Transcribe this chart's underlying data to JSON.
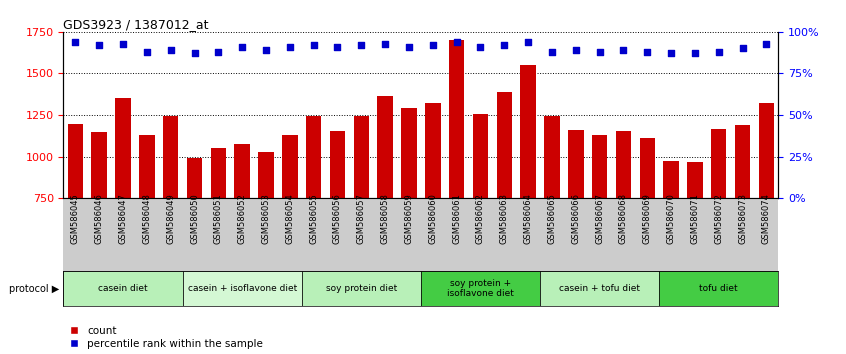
{
  "title": "GDS3923 / 1387012_at",
  "samples": [
    "GSM586045",
    "GSM586046",
    "GSM586047",
    "GSM586048",
    "GSM586049",
    "GSM586050",
    "GSM586051",
    "GSM586052",
    "GSM586053",
    "GSM586054",
    "GSM586055",
    "GSM586056",
    "GSM586057",
    "GSM586058",
    "GSM586059",
    "GSM586060",
    "GSM586061",
    "GSM586062",
    "GSM586063",
    "GSM586064",
    "GSM586065",
    "GSM586066",
    "GSM586067",
    "GSM586068",
    "GSM586069",
    "GSM586070",
    "GSM586071",
    "GSM586072",
    "GSM586073",
    "GSM586074"
  ],
  "counts": [
    1195,
    1150,
    1355,
    1130,
    1245,
    990,
    1050,
    1075,
    1025,
    1130,
    1245,
    1155,
    1245,
    1365,
    1295,
    1325,
    1700,
    1255,
    1390,
    1550,
    1245,
    1160,
    1130,
    1155,
    1110,
    975,
    965,
    1165,
    1190,
    1325
  ],
  "percentile_ranks": [
    94,
    92,
    93,
    88,
    89,
    87,
    88,
    91,
    89,
    91,
    92,
    91,
    92,
    93,
    91,
    92,
    94,
    91,
    92,
    94,
    88,
    89,
    88,
    89,
    88,
    87,
    87,
    88,
    90,
    93
  ],
  "bar_color": "#cc0000",
  "dot_color": "#0000cc",
  "ylim_left": [
    750,
    1750
  ],
  "ylim_right": [
    0,
    100
  ],
  "yticks_left": [
    750,
    1000,
    1250,
    1500,
    1750
  ],
  "yticks_right": [
    0,
    25,
    50,
    75,
    100
  ],
  "groups": [
    {
      "label": "casein diet",
      "start": 0,
      "end": 5,
      "color": "#b8f0b8"
    },
    {
      "label": "casein + isoflavone diet",
      "start": 5,
      "end": 10,
      "color": "#d4f8d4"
    },
    {
      "label": "soy protein diet",
      "start": 10,
      "end": 15,
      "color": "#b8f0b8"
    },
    {
      "label": "soy protein +\nisoflavone diet",
      "start": 15,
      "end": 20,
      "color": "#44cc44"
    },
    {
      "label": "casein + tofu diet",
      "start": 20,
      "end": 25,
      "color": "#b8f0b8"
    },
    {
      "label": "tofu diet",
      "start": 25,
      "end": 30,
      "color": "#44cc44"
    }
  ],
  "xtick_bg_color": "#cccccc",
  "protocol_label": "protocol",
  "legend_count_label": "count",
  "legend_pct_label": "percentile rank within the sample",
  "bg_color": "#ffffff"
}
